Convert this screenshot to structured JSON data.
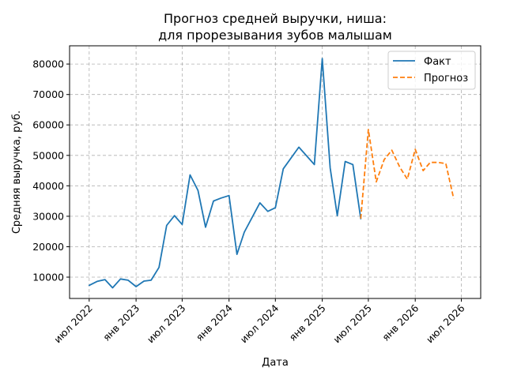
{
  "chart_data": {
    "type": "line",
    "title": [
      "Прогноз средней выручки, ниша:",
      "для прорезывания зубов малышам"
    ],
    "xlabel": "Дата",
    "ylabel": "Средняя выручка, руб.",
    "grid": true,
    "legend_position": "top-right",
    "x_ticks": [
      {
        "date": "2022-07-01",
        "label": "июл 2022"
      },
      {
        "date": "2023-01-01",
        "label": "янв 2023"
      },
      {
        "date": "2023-07-01",
        "label": "июл 2023"
      },
      {
        "date": "2024-01-01",
        "label": "янв 2024"
      },
      {
        "date": "2024-07-01",
        "label": "июл 2024"
      },
      {
        "date": "2025-01-01",
        "label": "янв 2025"
      },
      {
        "date": "2025-07-01",
        "label": "июл 2025"
      },
      {
        "date": "2026-01-01",
        "label": "янв 2026"
      },
      {
        "date": "2026-07-01",
        "label": "июл 2026"
      }
    ],
    "y_ticks": [
      10000,
      20000,
      30000,
      40000,
      50000,
      60000,
      70000,
      80000
    ],
    "ylim": [
      3000,
      86000
    ],
    "xlim": [
      "2022-04-15",
      "2026-09-15"
    ],
    "series": [
      {
        "name": "Факт",
        "color": "#1f77b4",
        "style": "solid",
        "points": [
          [
            "2022-07-01",
            7300
          ],
          [
            "2022-08-01",
            8600
          ],
          [
            "2022-09-01",
            9200
          ],
          [
            "2022-10-01",
            6500
          ],
          [
            "2022-11-01",
            9400
          ],
          [
            "2022-12-01",
            9000
          ],
          [
            "2023-01-01",
            6900
          ],
          [
            "2023-02-01",
            8700
          ],
          [
            "2023-03-01",
            9000
          ],
          [
            "2023-04-01",
            13200
          ],
          [
            "2023-05-01",
            27000
          ],
          [
            "2023-06-01",
            30200
          ],
          [
            "2023-07-01",
            27300
          ],
          [
            "2023-08-01",
            43600
          ],
          [
            "2023-09-01",
            38500
          ],
          [
            "2023-10-01",
            26400
          ],
          [
            "2023-11-01",
            35000
          ],
          [
            "2023-12-01",
            36000
          ],
          [
            "2024-01-01",
            36800
          ],
          [
            "2024-02-01",
            17500
          ],
          [
            "2024-03-01",
            24800
          ],
          [
            "2024-05-01",
            34400
          ],
          [
            "2024-06-01",
            31600
          ],
          [
            "2024-07-01",
            32800
          ],
          [
            "2024-08-01",
            45600
          ],
          [
            "2024-10-01",
            52700
          ],
          [
            "2024-12-01",
            47000
          ],
          [
            "2025-01-01",
            81800
          ],
          [
            "2025-02-01",
            45900
          ],
          [
            "2025-03-01",
            30200
          ],
          [
            "2025-04-01",
            48000
          ],
          [
            "2025-05-01",
            47000
          ],
          [
            "2025-06-01",
            29200
          ]
        ]
      },
      {
        "name": "Прогноз",
        "color": "#ff7f0e",
        "style": "dashed",
        "points": [
          [
            "2025-06-01",
            29200
          ],
          [
            "2025-07-01",
            58500
          ],
          [
            "2025-08-01",
            41300
          ],
          [
            "2025-09-01",
            48600
          ],
          [
            "2025-10-01",
            51700
          ],
          [
            "2025-11-01",
            46200
          ],
          [
            "2025-12-01",
            42200
          ],
          [
            "2026-01-01",
            52000
          ],
          [
            "2026-02-01",
            45000
          ],
          [
            "2026-03-01",
            47700
          ],
          [
            "2026-04-01",
            47700
          ],
          [
            "2026-05-01",
            47300
          ],
          [
            "2026-06-01",
            35800
          ]
        ]
      }
    ]
  }
}
